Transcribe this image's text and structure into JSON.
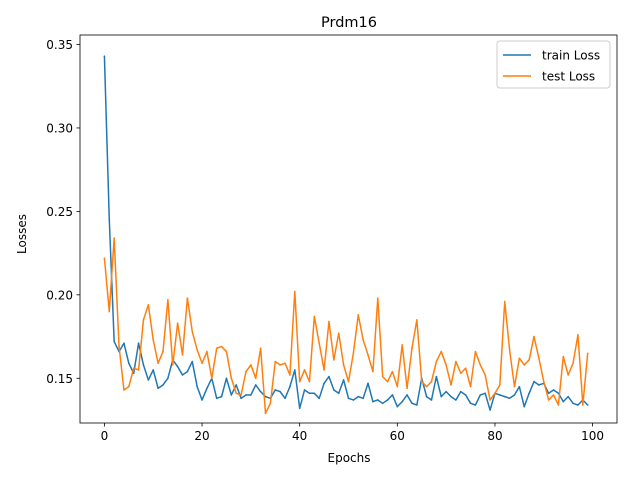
{
  "chart_data": {
    "type": "line",
    "title": "Prdm16",
    "xlabel": "Epochs",
    "ylabel": "Losses",
    "xlim": [
      -5,
      105
    ],
    "ylim": [
      0.1232,
      0.3557
    ],
    "xticks": [
      0,
      20,
      40,
      60,
      80,
      100
    ],
    "yticks": [
      0.15,
      0.2,
      0.25,
      0.3,
      0.35
    ],
    "xtick_labels": [
      "0",
      "20",
      "40",
      "60",
      "80",
      "100"
    ],
    "ytick_labels": [
      "0.15",
      "0.20",
      "0.25",
      "0.30",
      "0.35"
    ],
    "grid": false,
    "legend_position": "top-right",
    "series": [
      {
        "name": "train Loss",
        "color": "#1f77b4",
        "values": [
          0.343,
          0.245,
          0.172,
          0.166,
          0.171,
          0.159,
          0.153,
          0.171,
          0.158,
          0.149,
          0.155,
          0.144,
          0.146,
          0.15,
          0.161,
          0.157,
          0.152,
          0.154,
          0.16,
          0.145,
          0.137,
          0.144,
          0.15,
          0.138,
          0.139,
          0.15,
          0.14,
          0.146,
          0.138,
          0.14,
          0.14,
          0.146,
          0.142,
          0.139,
          0.138,
          0.143,
          0.142,
          0.138,
          0.145,
          0.155,
          0.132,
          0.143,
          0.141,
          0.141,
          0.138,
          0.147,
          0.151,
          0.143,
          0.141,
          0.149,
          0.138,
          0.137,
          0.139,
          0.138,
          0.147,
          0.136,
          0.137,
          0.135,
          0.137,
          0.14,
          0.133,
          0.136,
          0.14,
          0.135,
          0.134,
          0.15,
          0.139,
          0.137,
          0.151,
          0.139,
          0.142,
          0.139,
          0.137,
          0.142,
          0.14,
          0.135,
          0.134,
          0.14,
          0.141,
          0.131,
          0.141,
          0.14,
          0.139,
          0.138,
          0.14,
          0.145,
          0.133,
          0.141,
          0.148,
          0.146,
          0.147,
          0.141,
          0.143,
          0.141,
          0.136,
          0.139,
          0.135,
          0.134,
          0.137,
          0.134
        ]
      },
      {
        "name": "test Loss",
        "color": "#ff7f0e",
        "values": [
          0.222,
          0.19,
          0.234,
          0.169,
          0.143,
          0.145,
          0.156,
          0.155,
          0.185,
          0.194,
          0.173,
          0.159,
          0.166,
          0.197,
          0.158,
          0.183,
          0.164,
          0.198,
          0.178,
          0.167,
          0.159,
          0.166,
          0.15,
          0.168,
          0.169,
          0.166,
          0.15,
          0.141,
          0.14,
          0.154,
          0.158,
          0.15,
          0.168,
          0.129,
          0.135,
          0.16,
          0.158,
          0.159,
          0.152,
          0.202,
          0.148,
          0.155,
          0.148,
          0.187,
          0.171,
          0.155,
          0.184,
          0.161,
          0.177,
          0.158,
          0.148,
          0.165,
          0.188,
          0.173,
          0.164,
          0.154,
          0.198,
          0.151,
          0.148,
          0.154,
          0.145,
          0.17,
          0.144,
          0.168,
          0.185,
          0.148,
          0.145,
          0.148,
          0.16,
          0.166,
          0.158,
          0.146,
          0.16,
          0.153,
          0.156,
          0.145,
          0.166,
          0.158,
          0.152,
          0.137,
          0.141,
          0.146,
          0.196,
          0.167,
          0.145,
          0.162,
          0.158,
          0.161,
          0.175,
          0.162,
          0.148,
          0.137,
          0.14,
          0.134,
          0.163,
          0.152,
          0.159,
          0.176,
          0.134,
          0.165
        ]
      }
    ]
  }
}
